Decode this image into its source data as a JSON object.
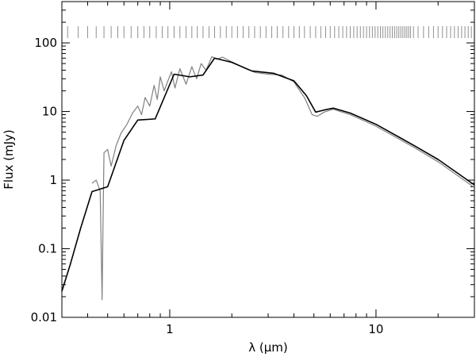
{
  "chart_data": {
    "type": "line",
    "title": "",
    "xlabel": "λ (μm)",
    "ylabel": "Flux (mJy)",
    "x_scale": "log",
    "y_scale": "log",
    "xlim": [
      0.3,
      30
    ],
    "ylim": [
      0.01,
      400
    ],
    "x_ticks": [
      {
        "value": 1,
        "label": "1"
      },
      {
        "value": 10,
        "label": "10"
      }
    ],
    "y_ticks": [
      {
        "value": 0.01,
        "label": "0.01"
      },
      {
        "value": 0.1,
        "label": "0.1"
      },
      {
        "value": 1,
        "label": "1"
      },
      {
        "value": 10,
        "label": "10"
      },
      {
        "value": 100,
        "label": "100"
      }
    ],
    "grid": false,
    "legend": "none",
    "colors": {
      "model": "#000000",
      "spectrum": "#808080",
      "markers": "#909090"
    },
    "series": [
      {
        "color": "#000000",
        "points": [
          [
            0.3,
            0.024
          ],
          [
            0.33,
            0.06
          ],
          [
            0.37,
            0.2
          ],
          [
            0.42,
            0.68
          ],
          [
            0.5,
            0.8
          ],
          [
            0.6,
            3.8
          ],
          [
            0.7,
            7.5
          ],
          [
            0.85,
            7.8
          ],
          [
            1.05,
            35
          ],
          [
            1.25,
            32
          ],
          [
            1.45,
            34
          ],
          [
            1.65,
            60
          ],
          [
            2.0,
            52
          ],
          [
            2.5,
            39
          ],
          [
            3.2,
            36
          ],
          [
            4.0,
            28
          ],
          [
            4.6,
            17
          ],
          [
            5.1,
            9.8
          ],
          [
            5.6,
            10.5
          ],
          [
            6.2,
            11.2
          ],
          [
            7.5,
            9.5
          ],
          [
            10,
            6.5
          ],
          [
            15,
            3.3
          ],
          [
            20,
            2.0
          ],
          [
            30,
            0.85
          ]
        ]
      },
      {
        "color": "#808080",
        "points": [
          [
            0.42,
            0.9
          ],
          [
            0.44,
            1.0
          ],
          [
            0.46,
            0.7
          ],
          [
            0.47,
            0.018
          ],
          [
            0.475,
            0.25
          ],
          [
            0.48,
            2.5
          ],
          [
            0.5,
            2.8
          ],
          [
            0.52,
            1.6
          ],
          [
            0.55,
            3.2
          ],
          [
            0.58,
            4.8
          ],
          [
            0.62,
            6.5
          ],
          [
            0.66,
            9.5
          ],
          [
            0.7,
            12
          ],
          [
            0.73,
            9
          ],
          [
            0.76,
            16
          ],
          [
            0.8,
            12
          ],
          [
            0.84,
            24
          ],
          [
            0.87,
            15
          ],
          [
            0.9,
            32
          ],
          [
            0.94,
            20
          ],
          [
            0.98,
            28
          ],
          [
            1.02,
            38
          ],
          [
            1.06,
            22
          ],
          [
            1.12,
            42
          ],
          [
            1.2,
            25
          ],
          [
            1.28,
            45
          ],
          [
            1.35,
            30
          ],
          [
            1.42,
            50
          ],
          [
            1.5,
            40
          ],
          [
            1.6,
            63
          ],
          [
            1.7,
            58
          ],
          [
            1.8,
            62
          ],
          [
            2.0,
            53
          ],
          [
            2.3,
            43
          ],
          [
            2.6,
            37
          ],
          [
            3.0,
            35
          ],
          [
            3.5,
            34
          ],
          [
            4.0,
            27
          ],
          [
            4.5,
            16
          ],
          [
            4.9,
            9
          ],
          [
            5.2,
            8.5
          ],
          [
            5.6,
            9.8
          ],
          [
            6.2,
            10.8
          ],
          [
            7.5,
            9.0
          ],
          [
            10,
            6.1
          ],
          [
            15,
            3.1
          ],
          [
            20,
            1.85
          ],
          [
            30,
            0.78
          ]
        ]
      }
    ],
    "wavelength_markers": [
      0.32,
      0.36,
      0.4,
      0.44,
      0.48,
      0.52,
      0.56,
      0.6,
      0.65,
      0.7,
      0.75,
      0.8,
      0.86,
      0.92,
      0.98,
      1.05,
      1.12,
      1.2,
      1.28,
      1.36,
      1.45,
      1.55,
      1.65,
      1.76,
      1.88,
      2.0,
      2.13,
      2.27,
      2.42,
      2.58,
      2.75,
      2.93,
      3.12,
      3.32,
      3.54,
      3.77,
      4.0,
      4.25,
      4.5,
      4.8,
      5.1,
      5.4,
      5.7,
      6.0,
      6.3,
      6.6,
      6.9,
      7.2,
      7.5,
      7.8,
      8.1,
      8.4,
      8.7,
      9.0,
      9.3,
      9.6,
      9.9,
      10.2,
      10.5,
      10.8,
      11.1,
      11.4,
      11.7,
      12.0,
      12.3,
      12.6,
      12.9,
      13.2,
      13.5,
      13.8,
      14.1,
      14.4,
      14.7,
      15.2,
      16,
      17,
      18,
      19,
      20,
      21,
      22,
      23,
      24,
      25,
      26,
      27,
      28,
      29
    ]
  }
}
